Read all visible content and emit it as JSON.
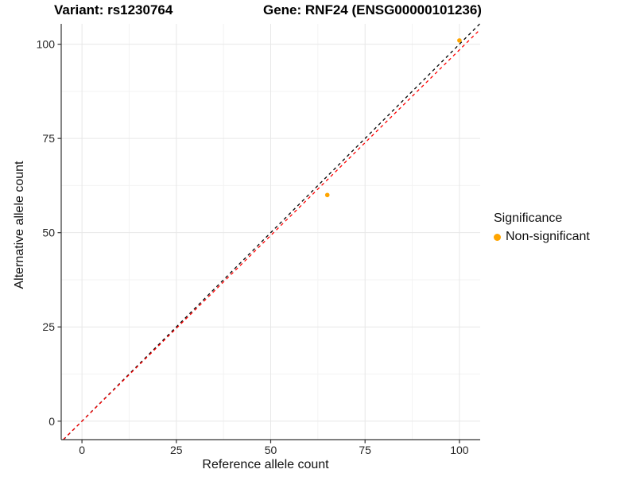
{
  "chart_data": {
    "type": "scatter",
    "title_left": "Variant: rs1230764",
    "title_right": "Gene: RNF24 (ENSG00000101236)",
    "xlabel": "Reference allele count",
    "ylabel": "Alternative allele count",
    "x_ticks": [
      0,
      25,
      50,
      75,
      100
    ],
    "y_ticks": [
      0,
      25,
      50,
      75,
      100
    ],
    "minor_ticks": [
      12.5,
      37.5,
      62.5,
      87.5
    ],
    "xlim": [
      -5.5,
      105.5
    ],
    "ylim": [
      -4.9,
      105.4
    ],
    "grid": "major+minor",
    "legend_position": "right-middle",
    "points": [
      {
        "x": 65,
        "y": 60,
        "series": "Non-significant"
      },
      {
        "x": 100,
        "y": 101,
        "series": "Non-significant"
      }
    ],
    "lines": [
      {
        "name": "identity-line",
        "slope": 1,
        "intercept": 0,
        "color": "#000000",
        "style": "dashed"
      },
      {
        "name": "regression-line",
        "slope": 0.985,
        "intercept": 0,
        "color": "#FF0000",
        "style": "dashed"
      }
    ],
    "legend": {
      "title": "Significance",
      "items": [
        {
          "label": "Non-significant",
          "color": "#FFA500"
        }
      ]
    },
    "colors": {
      "point": "#FFA500",
      "grid_major": "#E7E7E7",
      "grid_minor": "#F3F3F3",
      "axis": "#333333",
      "tick_label": "#262626"
    }
  }
}
